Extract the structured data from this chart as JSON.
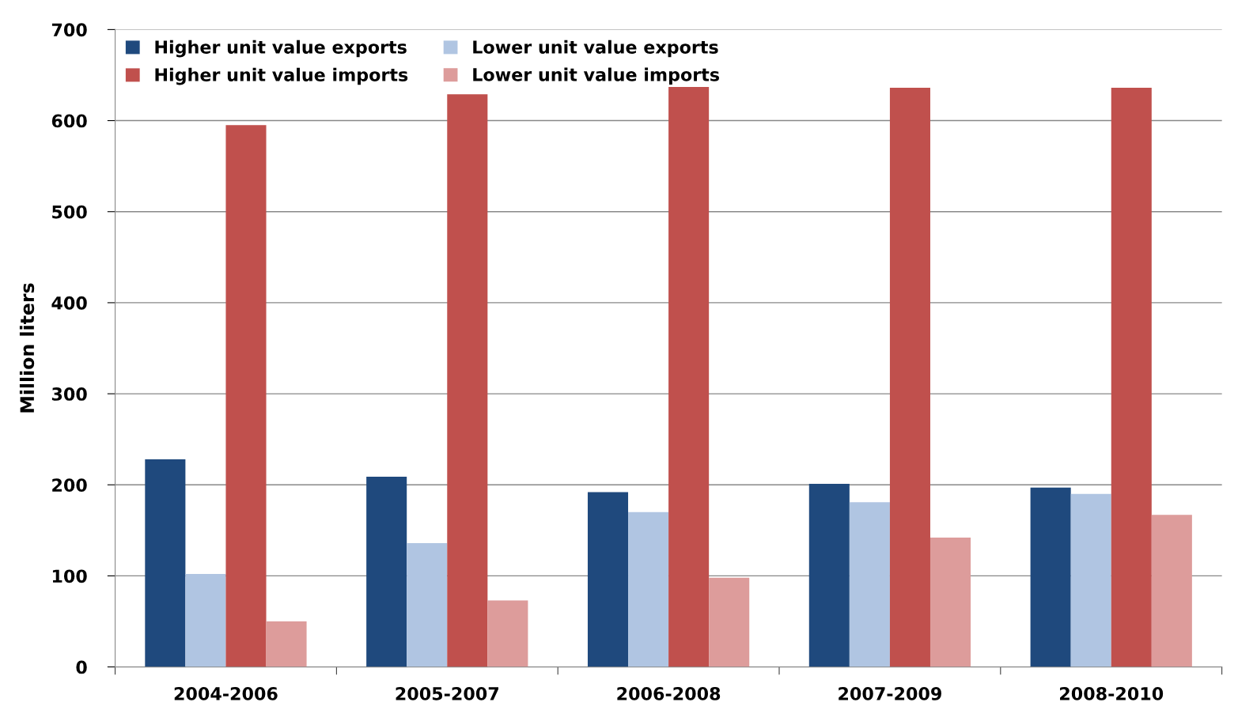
{
  "chart_data": {
    "type": "bar",
    "ylabel": "Million liters",
    "categories": [
      "2004-2006",
      "2005-2007",
      "2006-2008",
      "2007-2009",
      "2008-2010"
    ],
    "series": [
      {
        "name": "Higher unit value exports",
        "color": "#1f497d",
        "values": [
          228,
          209,
          192,
          201,
          197
        ]
      },
      {
        "name": "Lower unit value exports",
        "color": "#b0c5e2",
        "values": [
          102,
          136,
          170,
          181,
          190
        ]
      },
      {
        "name": "Higher unit value imports",
        "color": "#c0504d",
        "values": [
          595,
          629,
          637,
          636,
          636
        ]
      },
      {
        "name": "Lower unit value imports",
        "color": "#dd9c9b",
        "values": [
          50,
          73,
          98,
          142,
          167
        ]
      }
    ],
    "ylim": [
      0,
      700
    ],
    "yticks": [
      0,
      100,
      200,
      300,
      400,
      500,
      600,
      700
    ],
    "grid": "y",
    "legend": "top left"
  }
}
